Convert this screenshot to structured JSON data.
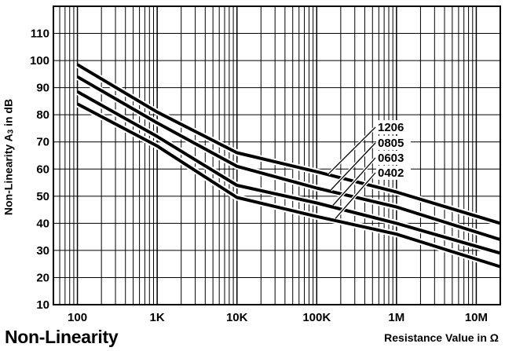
{
  "chart_data": {
    "type": "line",
    "title": "Non-Linearity",
    "ylabel_main": "Non-Linearity A",
    "ylabel_sub": "3",
    "ylabel_tail": " in dB",
    "xlabel": "Resistance Value in Ω",
    "x_scale": "log",
    "xlim": [
      50,
      20000000
    ],
    "ylim": [
      10,
      120
    ],
    "x_ticks": [
      {
        "value": 100,
        "label": "100"
      },
      {
        "value": 1000,
        "label": "1K"
      },
      {
        "value": 10000,
        "label": "10K"
      },
      {
        "value": 100000,
        "label": "100K"
      },
      {
        "value": 1000000,
        "label": "1M"
      },
      {
        "value": 10000000,
        "label": "10M"
      }
    ],
    "y_ticks": [
      10,
      20,
      30,
      40,
      50,
      60,
      70,
      80,
      90,
      100,
      110
    ],
    "grid": true,
    "series": [
      {
        "name": "1206",
        "x": [
          100,
          1000,
          10000,
          100000,
          1000000,
          20000000
        ],
        "y": [
          98.5,
          81,
          66,
          59,
          51.5,
          40
        ]
      },
      {
        "name": "0805",
        "x": [
          100,
          1000,
          10000,
          100000,
          1000000,
          20000000
        ],
        "y": [
          94,
          77,
          61,
          53,
          46,
          34
        ]
      },
      {
        "name": "0603",
        "x": [
          100,
          1000,
          10000,
          100000,
          1000000,
          20000000
        ],
        "y": [
          88.5,
          72,
          54,
          47.5,
          40,
          29
        ]
      },
      {
        "name": "0402",
        "x": [
          100,
          1000,
          10000,
          100000,
          1000000,
          20000000
        ],
        "y": [
          84,
          68.5,
          49.5,
          42.5,
          36,
          24
        ]
      }
    ],
    "legend_placement": "center-right, with leader lines",
    "line_color": "#000000"
  }
}
